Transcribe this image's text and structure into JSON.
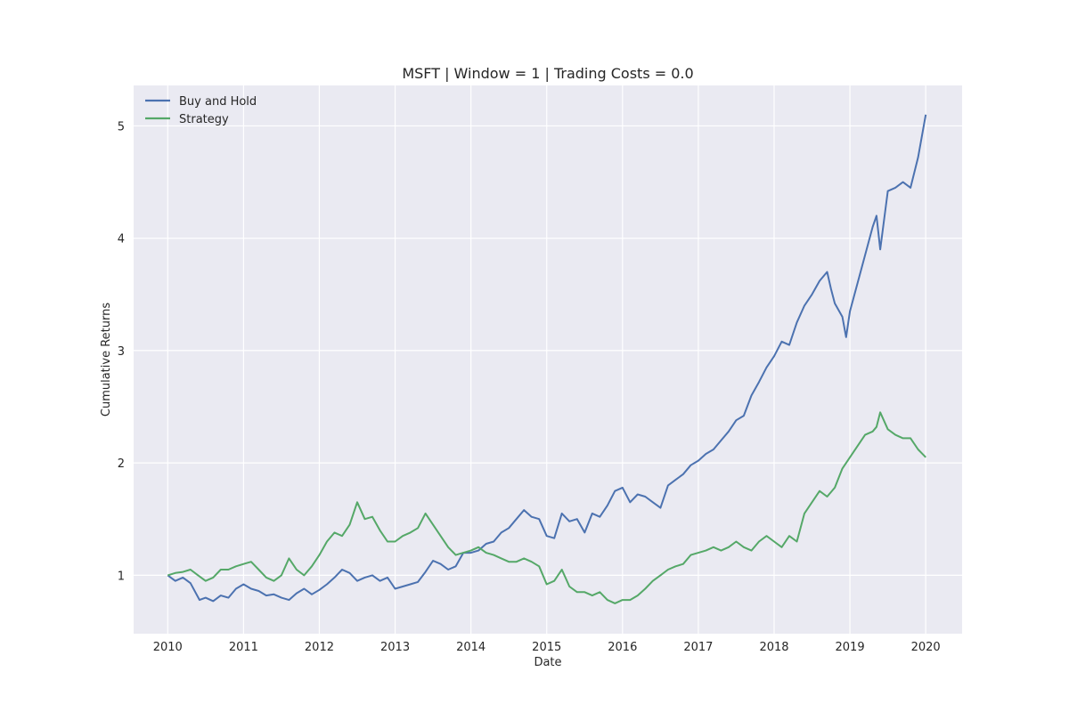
{
  "chart_data": {
    "type": "line",
    "title": "MSFT | Window = 1 | Trading Costs = 0.0",
    "xlabel": "Date",
    "ylabel": "Cumulative Returns",
    "xlim": [
      2009.55,
      2020.48
    ],
    "ylim": [
      0.48,
      5.36
    ],
    "x_ticks": [
      "2010",
      "2011",
      "2012",
      "2013",
      "2014",
      "2015",
      "2016",
      "2017",
      "2018",
      "2019",
      "2020"
    ],
    "y_ticks": [
      "1",
      "2",
      "3",
      "4",
      "5"
    ],
    "grid": true,
    "legend_position": "top-left",
    "colors": {
      "Buy and Hold": "#4c72b0",
      "Strategy": "#55a868",
      "background": "#eaeaf2",
      "grid": "#ffffff"
    },
    "series": [
      {
        "name": "Buy and Hold",
        "x": [
          2010.0,
          2010.1,
          2010.2,
          2010.3,
          2010.42,
          2010.5,
          2010.6,
          2010.7,
          2010.8,
          2010.9,
          2011.0,
          2011.1,
          2011.2,
          2011.3,
          2011.4,
          2011.5,
          2011.6,
          2011.7,
          2011.8,
          2011.9,
          2012.0,
          2012.1,
          2012.2,
          2012.3,
          2012.4,
          2012.5,
          2012.6,
          2012.7,
          2012.8,
          2012.9,
          2013.0,
          2013.1,
          2013.2,
          2013.3,
          2013.4,
          2013.5,
          2013.6,
          2013.7,
          2013.8,
          2013.9,
          2014.0,
          2014.1,
          2014.2,
          2014.3,
          2014.4,
          2014.5,
          2014.6,
          2014.7,
          2014.8,
          2014.9,
          2015.0,
          2015.1,
          2015.2,
          2015.3,
          2015.4,
          2015.5,
          2015.6,
          2015.7,
          2015.8,
          2015.9,
          2016.0,
          2016.1,
          2016.2,
          2016.3,
          2016.4,
          2016.5,
          2016.6,
          2016.7,
          2016.8,
          2016.9,
          2017.0,
          2017.1,
          2017.2,
          2017.3,
          2017.4,
          2017.5,
          2017.6,
          2017.7,
          2017.8,
          2017.9,
          2018.0,
          2018.1,
          2018.2,
          2018.3,
          2018.4,
          2018.5,
          2018.6,
          2018.7,
          2018.75,
          2018.8,
          2018.9,
          2018.95,
          2019.0,
          2019.1,
          2019.2,
          2019.3,
          2019.35,
          2019.4,
          2019.5,
          2019.6,
          2019.7,
          2019.8,
          2019.9,
          2020.0
        ],
        "values": [
          1.0,
          0.95,
          0.98,
          0.93,
          0.78,
          0.8,
          0.77,
          0.82,
          0.8,
          0.88,
          0.92,
          0.88,
          0.86,
          0.82,
          0.83,
          0.8,
          0.78,
          0.84,
          0.88,
          0.83,
          0.87,
          0.92,
          0.98,
          1.05,
          1.02,
          0.95,
          0.98,
          1.0,
          0.95,
          0.98,
          0.88,
          0.9,
          0.92,
          0.94,
          1.03,
          1.13,
          1.1,
          1.05,
          1.08,
          1.2,
          1.2,
          1.22,
          1.28,
          1.3,
          1.38,
          1.42,
          1.5,
          1.58,
          1.52,
          1.5,
          1.35,
          1.33,
          1.55,
          1.48,
          1.5,
          1.38,
          1.55,
          1.52,
          1.62,
          1.75,
          1.78,
          1.65,
          1.72,
          1.7,
          1.65,
          1.6,
          1.8,
          1.85,
          1.9,
          1.98,
          2.02,
          2.08,
          2.12,
          2.2,
          2.28,
          2.38,
          2.42,
          2.6,
          2.72,
          2.85,
          2.95,
          3.08,
          3.05,
          3.25,
          3.4,
          3.5,
          3.62,
          3.7,
          3.55,
          3.42,
          3.3,
          3.12,
          3.35,
          3.6,
          3.85,
          4.1,
          4.2,
          3.9,
          4.42,
          4.45,
          4.5,
          4.45,
          4.72,
          5.1
        ]
      },
      {
        "name": "Strategy",
        "x": [
          2010.0,
          2010.1,
          2010.2,
          2010.3,
          2010.4,
          2010.5,
          2010.6,
          2010.7,
          2010.8,
          2010.9,
          2011.0,
          2011.1,
          2011.2,
          2011.3,
          2011.4,
          2011.5,
          2011.6,
          2011.7,
          2011.8,
          2011.9,
          2012.0,
          2012.1,
          2012.2,
          2012.3,
          2012.4,
          2012.5,
          2012.6,
          2012.7,
          2012.8,
          2012.9,
          2013.0,
          2013.1,
          2013.2,
          2013.3,
          2013.4,
          2013.5,
          2013.6,
          2013.7,
          2013.8,
          2013.9,
          2014.0,
          2014.1,
          2014.2,
          2014.3,
          2014.4,
          2014.5,
          2014.6,
          2014.7,
          2014.8,
          2014.9,
          2015.0,
          2015.1,
          2015.2,
          2015.3,
          2015.4,
          2015.5,
          2015.6,
          2015.7,
          2015.8,
          2015.9,
          2016.0,
          2016.1,
          2016.2,
          2016.3,
          2016.4,
          2016.5,
          2016.6,
          2016.7,
          2016.8,
          2016.9,
          2017.0,
          2017.1,
          2017.2,
          2017.3,
          2017.4,
          2017.5,
          2017.6,
          2017.7,
          2017.8,
          2017.9,
          2018.0,
          2018.1,
          2018.2,
          2018.3,
          2018.4,
          2018.5,
          2018.6,
          2018.7,
          2018.8,
          2018.9,
          2019.0,
          2019.1,
          2019.2,
          2019.3,
          2019.35,
          2019.4,
          2019.5,
          2019.6,
          2019.7,
          2019.8,
          2019.9,
          2020.0
        ],
        "values": [
          1.0,
          1.02,
          1.03,
          1.05,
          1.0,
          0.95,
          0.98,
          1.05,
          1.05,
          1.08,
          1.1,
          1.12,
          1.05,
          0.98,
          0.95,
          1.0,
          1.15,
          1.05,
          1.0,
          1.08,
          1.18,
          1.3,
          1.38,
          1.35,
          1.45,
          1.65,
          1.5,
          1.52,
          1.4,
          1.3,
          1.3,
          1.35,
          1.38,
          1.42,
          1.55,
          1.45,
          1.35,
          1.25,
          1.18,
          1.2,
          1.22,
          1.25,
          1.2,
          1.18,
          1.15,
          1.12,
          1.12,
          1.15,
          1.12,
          1.08,
          0.92,
          0.95,
          1.05,
          0.9,
          0.85,
          0.85,
          0.82,
          0.85,
          0.78,
          0.75,
          0.78,
          0.78,
          0.82,
          0.88,
          0.95,
          1.0,
          1.05,
          1.08,
          1.1,
          1.18,
          1.2,
          1.22,
          1.25,
          1.22,
          1.25,
          1.3,
          1.25,
          1.22,
          1.3,
          1.35,
          1.3,
          1.25,
          1.35,
          1.3,
          1.55,
          1.65,
          1.75,
          1.7,
          1.78,
          1.95,
          2.05,
          2.15,
          2.25,
          2.28,
          2.32,
          2.45,
          2.3,
          2.25,
          2.22,
          2.22,
          2.12,
          2.05
        ]
      }
    ]
  }
}
